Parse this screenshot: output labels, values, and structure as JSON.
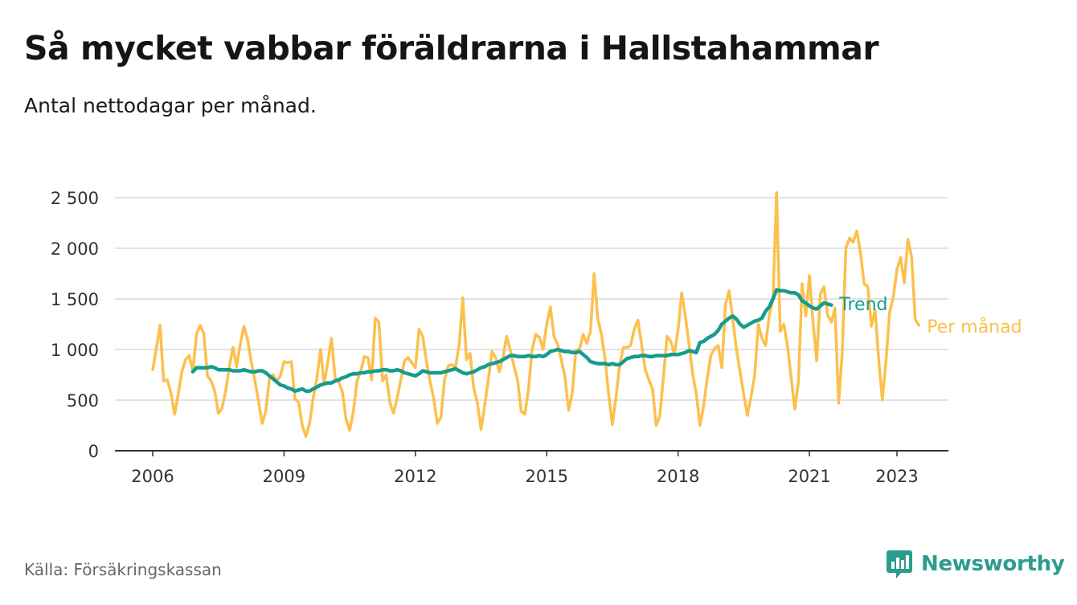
{
  "header": {
    "title": "Så mycket vabbar föräldrarna i Hallstahammar",
    "subtitle": "Antal nettodagar per månad."
  },
  "footer": {
    "source": "Källa: Försäkringskassan",
    "brand": "Newsworthy"
  },
  "colors": {
    "per_month": "#fcc04d",
    "trend": "#169c8c",
    "grid": "#d9d9d9",
    "axis": "#333333",
    "brand": "#2a9d8f"
  },
  "icons": [
    "newsworthy-logo-icon"
  ],
  "chart_data": {
    "type": "line",
    "title": "Så mycket vabbar föräldrarna i Hallstahammar",
    "subtitle": "Antal nettodagar per månad.",
    "xlabel": "",
    "ylabel": "",
    "xlim": [
      2005.5,
      2024.0
    ],
    "ylim": [
      0,
      2500
    ],
    "yticks": [
      0,
      500,
      1000,
      1500,
      2000,
      2500
    ],
    "ytick_labels": [
      "0",
      "500",
      "1 000",
      "1 500",
      "2 000",
      "2 500"
    ],
    "xticks": [
      2006,
      2009,
      2012,
      2015,
      2018,
      2021,
      2023
    ],
    "xtick_labels": [
      "2006",
      "2009",
      "2012",
      "2015",
      "2018",
      "2021",
      "2023"
    ],
    "grid": true,
    "legend": "inline labels at line ends (right)",
    "series": [
      {
        "name": "Trend",
        "color": "#169c8c",
        "x_start": 2006.9167,
        "x_step": 0.083333,
        "values": [
          780,
          820,
          820,
          820,
          820,
          830,
          820,
          800,
          800,
          800,
          800,
          790,
          790,
          790,
          800,
          790,
          780,
          780,
          790,
          790,
          770,
          740,
          710,
          680,
          650,
          640,
          620,
          610,
          590,
          600,
          610,
          590,
          590,
          610,
          630,
          650,
          660,
          670,
          670,
          690,
          700,
          720,
          730,
          750,
          760,
          760,
          770,
          770,
          780,
          780,
          790,
          790,
          800,
          800,
          790,
          790,
          800,
          790,
          770,
          760,
          750,
          740,
          760,
          790,
          780,
          770,
          770,
          770,
          770,
          780,
          790,
          800,
          810,
          790,
          770,
          760,
          770,
          780,
          800,
          820,
          830,
          850,
          860,
          870,
          880,
          900,
          920,
          940,
          940,
          930,
          930,
          930,
          940,
          930,
          930,
          940,
          930,
          950,
          980,
          990,
          1000,
          990,
          980,
          980,
          970,
          970,
          980,
          950,
          920,
          880,
          870,
          860,
          860,
          860,
          850,
          860,
          850,
          850,
          880,
          910,
          920,
          930,
          930,
          940,
          940,
          930,
          930,
          940,
          940,
          940,
          940,
          950,
          950,
          950,
          960,
          970,
          990,
          980,
          970,
          1070,
          1080,
          1110,
          1130,
          1150,
          1190,
          1250,
          1280,
          1310,
          1330,
          1300,
          1250,
          1220,
          1240,
          1260,
          1280,
          1290,
          1310,
          1380,
          1420,
          1500,
          1590,
          1580,
          1580,
          1570,
          1560,
          1560,
          1540,
          1480,
          1460,
          1430,
          1410,
          1400,
          1430,
          1460,
          1450,
          1440
        ]
      },
      {
        "name": "Per månad",
        "color": "#fcc04d",
        "x_start": 2006.0,
        "x_step": 0.083333,
        "values": [
          800,
          1010,
          1240,
          690,
          700,
          570,
          360,
          560,
          780,
          900,
          940,
          780,
          1150,
          1240,
          1160,
          740,
          690,
          590,
          370,
          420,
          590,
          830,
          1020,
          830,
          1050,
          1230,
          1100,
          880,
          700,
          490,
          270,
          390,
          720,
          750,
          690,
          740,
          880,
          870,
          880,
          510,
          480,
          250,
          140,
          270,
          520,
          720,
          1000,
          660,
          880,
          1110,
          720,
          680,
          580,
          310,
          200,
          390,
          690,
          780,
          930,
          920,
          700,
          1310,
          1270,
          690,
          750,
          480,
          370,
          520,
          700,
          890,
          920,
          870,
          820,
          1200,
          1130,
          890,
          690,
          520,
          270,
          330,
          700,
          840,
          850,
          830,
          1050,
          1510,
          900,
          960,
          620,
          470,
          210,
          450,
          700,
          980,
          920,
          780,
          920,
          1130,
          1000,
          840,
          700,
          390,
          360,
          600,
          1000,
          1150,
          1120,
          1000,
          1250,
          1420,
          1130,
          1050,
          900,
          730,
          400,
          570,
          990,
          1010,
          1150,
          1060,
          1180,
          1750,
          1300,
          1150,
          900,
          550,
          260,
          530,
          850,
          1020,
          1020,
          1040,
          1200,
          1290,
          1050,
          800,
          700,
          610,
          250,
          340,
          730,
          1130,
          1080,
          950,
          1190,
          1560,
          1330,
          1050,
          760,
          560,
          250,
          440,
          720,
          940,
          1010,
          1040,
          820,
          1450,
          1580,
          1300,
          1000,
          780,
          560,
          350,
          530,
          750,
          1250,
          1110,
          1040,
          1340,
          1490,
          2550,
          1180,
          1250,
          1030,
          720,
          410,
          680,
          1650,
          1330,
          1730,
          1270,
          890,
          1550,
          1620,
          1340,
          1270,
          1410,
          470,
          960,
          2000,
          2100,
          2060,
          2170,
          1960,
          1650,
          1620,
          1230,
          1390,
          900,
          500,
          890,
          1370,
          1520,
          1790,
          1910,
          1660,
          2090,
          1920,
          1300,
          1240
        ]
      }
    ]
  }
}
